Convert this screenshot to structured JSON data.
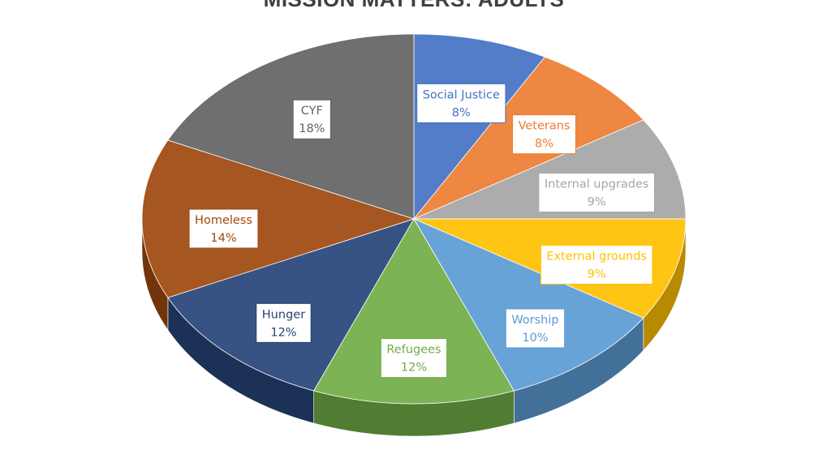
{
  "chart_data": {
    "type": "pie",
    "title": "MISSION MATTERS: ADULTS",
    "slices": [
      {
        "label": "Social Justice",
        "value": 8,
        "value_label": "8%",
        "color": "#4472C4"
      },
      {
        "label": "Veterans",
        "value": 8,
        "value_label": "8%",
        "color": "#ED7D31"
      },
      {
        "label": "Internal upgrades",
        "value": 9,
        "value_label": "9%",
        "color": "#A5A5A5"
      },
      {
        "label": "External grounds",
        "value": 9,
        "value_label": "9%",
        "color": "#FFC000"
      },
      {
        "label": "Worship",
        "value": 10,
        "value_label": "10%",
        "color": "#5B9BD5"
      },
      {
        "label": "Refugees",
        "value": 12,
        "value_label": "12%",
        "color": "#70AD47"
      },
      {
        "label": "Hunger",
        "value": 12,
        "value_label": "12%",
        "color": "#264478"
      },
      {
        "label": "Homeless",
        "value": 14,
        "value_label": "14%",
        "color": "#9E480E"
      },
      {
        "label": "CYF",
        "value": 18,
        "value_label": "18%",
        "color": "#636363"
      }
    ],
    "style": "3D",
    "legend": "none"
  }
}
